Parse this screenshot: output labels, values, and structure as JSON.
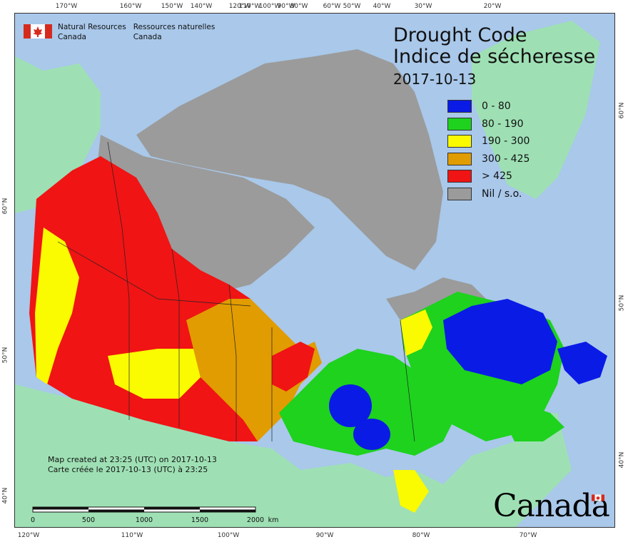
{
  "agency": {
    "name_en_line1": "Natural Resources",
    "name_en_line2": "Canada",
    "name_fr_line1": "Ressources naturelles",
    "name_fr_line2": "Canada"
  },
  "title": {
    "en": "Drought Code",
    "fr": "Indice de sécheresse",
    "date": "2017-10-13"
  },
  "legend": [
    {
      "label": "0 - 80",
      "color": "#0a1be6"
    },
    {
      "label": "80 - 190",
      "color": "#1ed21e"
    },
    {
      "label": "190 - 300",
      "color": "#fafa00"
    },
    {
      "label": "300 - 425",
      "color": "#e09c00"
    },
    {
      "label": "> 425",
      "color": "#f01414"
    },
    {
      "label": "Nil / s.o.",
      "color": "#9b9b9b"
    }
  ],
  "created": {
    "en": "Map created at 23:25 (UTC) on 2017-10-13",
    "fr": "Carte créée le 2017-10-13 (UTC) à 23:25"
  },
  "scale": {
    "labels": [
      "0",
      "500",
      "1000",
      "1500",
      "2000"
    ],
    "unit": "km"
  },
  "wordmark": "Canada",
  "graticule": {
    "top": [
      "170°W",
      "160°W",
      "150°W",
      "140°W",
      "120°W",
      "110°W",
      "100°W",
      "90°W",
      "80°W",
      "60°W",
      "50°W",
      "40°W",
      "30°W",
      "20°W"
    ],
    "bottom": [
      "120°W",
      "110°W",
      "100°W",
      "90°W",
      "80°W",
      "70°W"
    ],
    "left": [
      "60°N",
      "50°N",
      "40°N"
    ],
    "right": [
      "60°N",
      "50°N",
      "40°N"
    ]
  },
  "colors": {
    "water": "#a9c8ea",
    "foreign_land": "#9ee0b4",
    "nil": "#9b9b9b"
  }
}
